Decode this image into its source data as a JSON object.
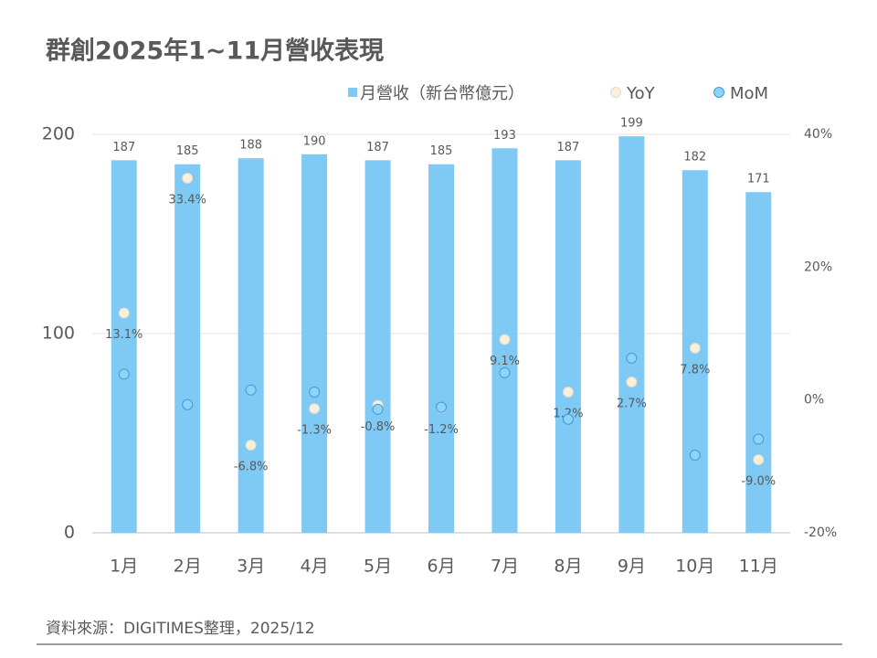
{
  "chart_data": {
    "type": "bar",
    "title": "群創2025年1~11月營收表現",
    "source": "資料來源：DIGITIMES整理，2025/12",
    "categories": [
      "1月",
      "2月",
      "3月",
      "4月",
      "5月",
      "6月",
      "7月",
      "8月",
      "9月",
      "10月",
      "11月"
    ],
    "series": [
      {
        "name": "月營收（新台幣億元）",
        "type": "bar",
        "color": "#7fc9f5",
        "values": [
          187,
          185,
          188,
          190,
          187,
          185,
          193,
          187,
          199,
          182,
          171
        ]
      },
      {
        "name": "YoY",
        "type": "scatter",
        "axis": "y2",
        "color": "#faf0d6",
        "values": [
          13.1,
          33.4,
          -6.8,
          -1.3,
          -0.8,
          -1.2,
          9.1,
          1.2,
          2.7,
          7.8,
          -9.0
        ],
        "value_labels": [
          "13.1%",
          "33.4%",
          "-6.8%",
          "-1.3%",
          "-0.8%",
          "-1.2%",
          "9.1%",
          "1.2%",
          "2.7%",
          "7.8%",
          "-9.0%"
        ]
      },
      {
        "name": "MoM",
        "type": "scatter",
        "axis": "y2",
        "color": "#8fd3f7",
        "values": [
          3.9,
          -0.7,
          1.5,
          1.2,
          -1.4,
          -1.1,
          4.1,
          -2.9,
          6.3,
          -8.3,
          -5.9
        ]
      }
    ],
    "ylim": [
      0,
      200
    ],
    "yticks": [
      0,
      100,
      200
    ],
    "y2lim": [
      -20,
      40
    ],
    "y2ticks": [
      {
        "value": -20,
        "label": "-20%"
      },
      {
        "value": 0,
        "label": "0%"
      },
      {
        "value": 20,
        "label": "20%"
      },
      {
        "value": 40,
        "label": "40%"
      }
    ],
    "grid": true,
    "legend": "top"
  }
}
